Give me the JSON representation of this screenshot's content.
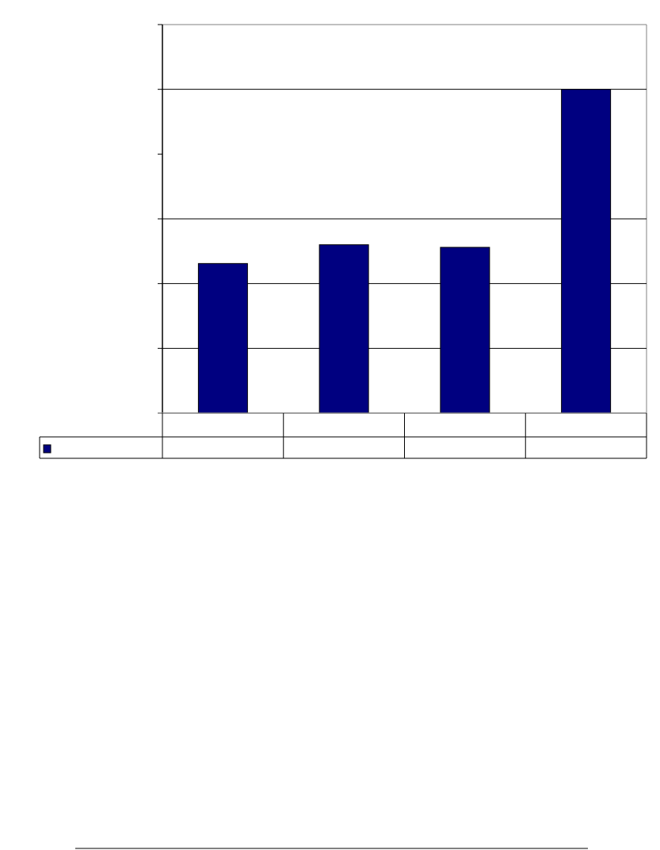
{
  "chart_data": {
    "type": "bar",
    "title": "",
    "xlabel": "",
    "ylabel": "",
    "categories": [
      "",
      "",
      "",
      ""
    ],
    "series": [
      {
        "values": [
          2.31,
          2.6,
          2.56,
          5.0
        ],
        "color": "#000080"
      }
    ],
    "ylim": [
      0,
      6
    ],
    "y_tick_count": 7,
    "gridlines_at": [
      1,
      2,
      3,
      5
    ],
    "grid": true,
    "legend": "data-table-left",
    "data_table": true
  },
  "colors": {
    "bar": "#000080",
    "axis": "#000000",
    "plot_border": "#808080"
  }
}
